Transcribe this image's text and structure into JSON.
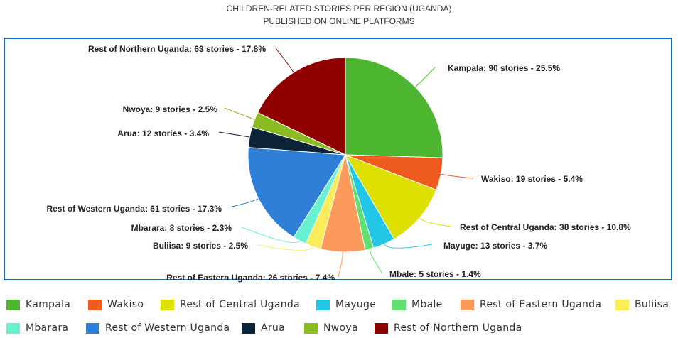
{
  "chart_data": {
    "type": "pie",
    "title": "CHILDREN-RELATED STORIES PER REGION (UGANDA)",
    "subtitle": "PUBLISHED ON ONLINE PLATFORMS",
    "legend_position": "bottom",
    "slices": [
      {
        "name": "Kampala",
        "value": 90,
        "percent": 25.5,
        "color": "#4cb630",
        "label": "Kampala: 90 stories - 25.5%"
      },
      {
        "name": "Wakiso",
        "value": 19,
        "percent": 5.4,
        "color": "#ef5a1f",
        "label": "Wakiso: 19 stories - 5.4%"
      },
      {
        "name": "Rest of Central Uganda",
        "value": 38,
        "percent": 10.8,
        "color": "#dde000",
        "label": "Rest of Central Uganda: 38 stories - 10.8%"
      },
      {
        "name": "Mayuge",
        "value": 13,
        "percent": 3.7,
        "color": "#23c7e6",
        "label": "Mayuge: 13 stories - 3.7%"
      },
      {
        "name": "Mbale",
        "value": 5,
        "percent": 1.4,
        "color": "#5fe070",
        "label": "Mbale: 5 stories - 1.4%"
      },
      {
        "name": "Rest of Eastern Uganda",
        "value": 26,
        "percent": 7.4,
        "color": "#fb9a5a",
        "label": "Rest of Eastern Uganda: 26 stories - 7.4%"
      },
      {
        "name": "Buliisa",
        "value": 9,
        "percent": 2.5,
        "color": "#fbec5a",
        "label": "Buliisa: 9 stories - 2.5%"
      },
      {
        "name": "Mbarara",
        "value": 8,
        "percent": 2.3,
        "color": "#66f2d1",
        "label": "Mbarara: 8 stories - 2.3%"
      },
      {
        "name": "Rest of Western Uganda",
        "value": 61,
        "percent": 17.3,
        "color": "#2f7ed8",
        "label": "Rest of Western Uganda: 61 stories - 17.3%"
      },
      {
        "name": "Arua",
        "value": 12,
        "percent": 3.4,
        "color": "#0d233a",
        "label": "Arua: 12 stories - 3.4%"
      },
      {
        "name": "Nwoya",
        "value": 9,
        "percent": 2.5,
        "color": "#8bbc21",
        "label": "Nwoya: 9 stories - 2.5%"
      },
      {
        "name": "Rest of Northern Uganda",
        "value": 63,
        "percent": 17.8,
        "color": "#910000",
        "label": "Rest of Northern Uganda: 63 stories - 17.8%"
      }
    ]
  }
}
